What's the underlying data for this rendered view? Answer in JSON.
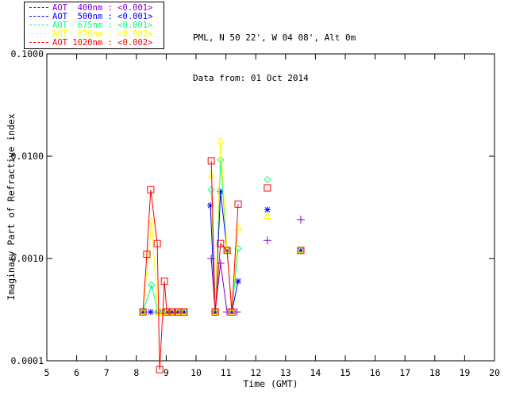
{
  "header": {
    "line1": "PML, N 50 22', W 04 08', Alt 0m",
    "line2": "Data from: 01 Oct 2014"
  },
  "legend": {
    "items": [
      {
        "label": "AOT  400nm : <0.001>",
        "color": "#7D00C8"
      },
      {
        "label": "AOT  500nm : <0.001>",
        "color": "#0000FF"
      },
      {
        "label": "AOT  675nm : <0.001>",
        "color": "#00FF7F"
      },
      {
        "label": "AOT  870nm : <0.002>",
        "color": "#FFFF00"
      },
      {
        "label": "AOT 1020nm : <0.002>",
        "color": "#FF0000"
      }
    ]
  },
  "chart_data": {
    "type": "line",
    "title": "",
    "xlabel": "Time (GMT)",
    "ylabel": "Imaginary Part of Refractive index",
    "xlim": [
      5,
      20
    ],
    "ylim": [
      0.0001,
      0.1
    ],
    "yscale": "log",
    "grid": false,
    "legend_position": "top-left-outside",
    "x_ticks": [
      5,
      6,
      7,
      8,
      9,
      10,
      11,
      12,
      13,
      14,
      15,
      16,
      17,
      18,
      19,
      20
    ],
    "y_ticks": [
      {
        "value": 0.0001,
        "label": "0.0001"
      },
      {
        "value": 0.001,
        "label": "0.0010"
      },
      {
        "value": 0.01,
        "label": "0.0100"
      },
      {
        "value": 0.1,
        "label": "0.1000"
      }
    ],
    "series": [
      {
        "name": "AOT 400nm",
        "mean": "<0.001>",
        "color": "#7D00C8",
        "marker": "plus",
        "segments": [
          [
            [
              10.51,
              0.001
            ],
            [
              10.64,
              0.0003
            ],
            [
              10.82,
              0.0009
            ],
            [
              11.04,
              0.0003
            ],
            [
              11.37,
              0.0003
            ]
          ],
          [
            [
              12.39,
              0.0015
            ]
          ],
          [
            [
              13.51,
              0.0024
            ]
          ]
        ]
      },
      {
        "name": "AOT 500nm",
        "mean": "<0.001>",
        "color": "#0000FF",
        "marker": "asterisk",
        "segments": [
          [
            [
              8.22,
              0.0003
            ],
            [
              8.48,
              0.0003
            ],
            [
              8.72,
              0.0003
            ],
            [
              8.8,
              0.0003
            ],
            [
              9.02,
              0.0003
            ],
            [
              9.2,
              0.0003
            ],
            [
              9.39,
              0.0003
            ],
            [
              9.6,
              0.0003
            ]
          ],
          [
            [
              10.48,
              0.0033
            ],
            [
              10.64,
              0.0003
            ],
            [
              10.82,
              0.0045
            ],
            [
              11.04,
              0.0012
            ],
            [
              11.2,
              0.0003
            ],
            [
              11.41,
              0.0006
            ]
          ],
          [
            [
              12.39,
              0.003
            ]
          ],
          [
            [
              13.51,
              0.0012
            ]
          ]
        ]
      },
      {
        "name": "AOT 675nm",
        "mean": "<0.001>",
        "color": "#00FF7F",
        "marker": "diamond",
        "segments": [
          [
            [
              8.22,
              0.0003
            ],
            [
              8.51,
              0.00055
            ],
            [
              8.72,
              0.0003
            ],
            [
              8.8,
              0.0003
            ],
            [
              9.02,
              0.0003
            ],
            [
              9.2,
              0.0003
            ],
            [
              9.39,
              0.0003
            ],
            [
              9.6,
              0.0003
            ]
          ],
          [
            [
              10.51,
              0.0047
            ],
            [
              10.64,
              0.0003
            ],
            [
              10.82,
              0.0092
            ],
            [
              11.04,
              0.0012
            ],
            [
              11.2,
              0.0003
            ],
            [
              11.41,
              0.00125
            ]
          ],
          [
            [
              12.39,
              0.0059
            ]
          ],
          [
            [
              13.51,
              0.0012
            ]
          ]
        ]
      },
      {
        "name": "AOT 870nm",
        "mean": "<0.002>",
        "color": "#FFFF00",
        "marker": "triangle",
        "segments": [
          [
            [
              8.22,
              0.0003
            ],
            [
              8.51,
              0.0023
            ],
            [
              8.72,
              0.0003
            ],
            [
              8.8,
              0.0003
            ],
            [
              9.02,
              0.0003
            ],
            [
              9.2,
              0.0003
            ],
            [
              9.39,
              0.0003
            ],
            [
              9.6,
              0.0003
            ]
          ],
          [
            [
              10.51,
              0.0065
            ],
            [
              10.64,
              0.0003
            ],
            [
              10.82,
              0.014
            ],
            [
              11.04,
              0.0012
            ],
            [
              11.2,
              0.0003
            ],
            [
              11.41,
              0.002
            ]
          ],
          [
            [
              12.39,
              0.0026
            ]
          ],
          [
            [
              13.51,
              0.0012
            ]
          ]
        ]
      },
      {
        "name": "AOT 1020nm",
        "mean": "<0.002>",
        "color": "#FF0000",
        "marker": "square",
        "segments": [
          [
            [
              8.22,
              0.0003
            ],
            [
              8.35,
              0.0011
            ],
            [
              8.48,
              0.0047
            ],
            [
              8.7,
              0.0014
            ],
            [
              8.78,
              8.2e-05
            ],
            [
              8.94,
              0.0006
            ],
            [
              9.02,
              0.0003
            ],
            [
              9.2,
              0.0003
            ],
            [
              9.39,
              0.0003
            ],
            [
              9.6,
              0.0003
            ]
          ],
          [
            [
              10.51,
              0.009
            ],
            [
              10.64,
              0.0003
            ],
            [
              10.82,
              0.0014
            ],
            [
              11.04,
              0.0012
            ],
            [
              11.2,
              0.0003
            ],
            [
              11.41,
              0.0034
            ]
          ],
          [
            [
              12.39,
              0.0049
            ]
          ],
          [
            [
              13.51,
              0.0012
            ]
          ]
        ]
      }
    ]
  }
}
